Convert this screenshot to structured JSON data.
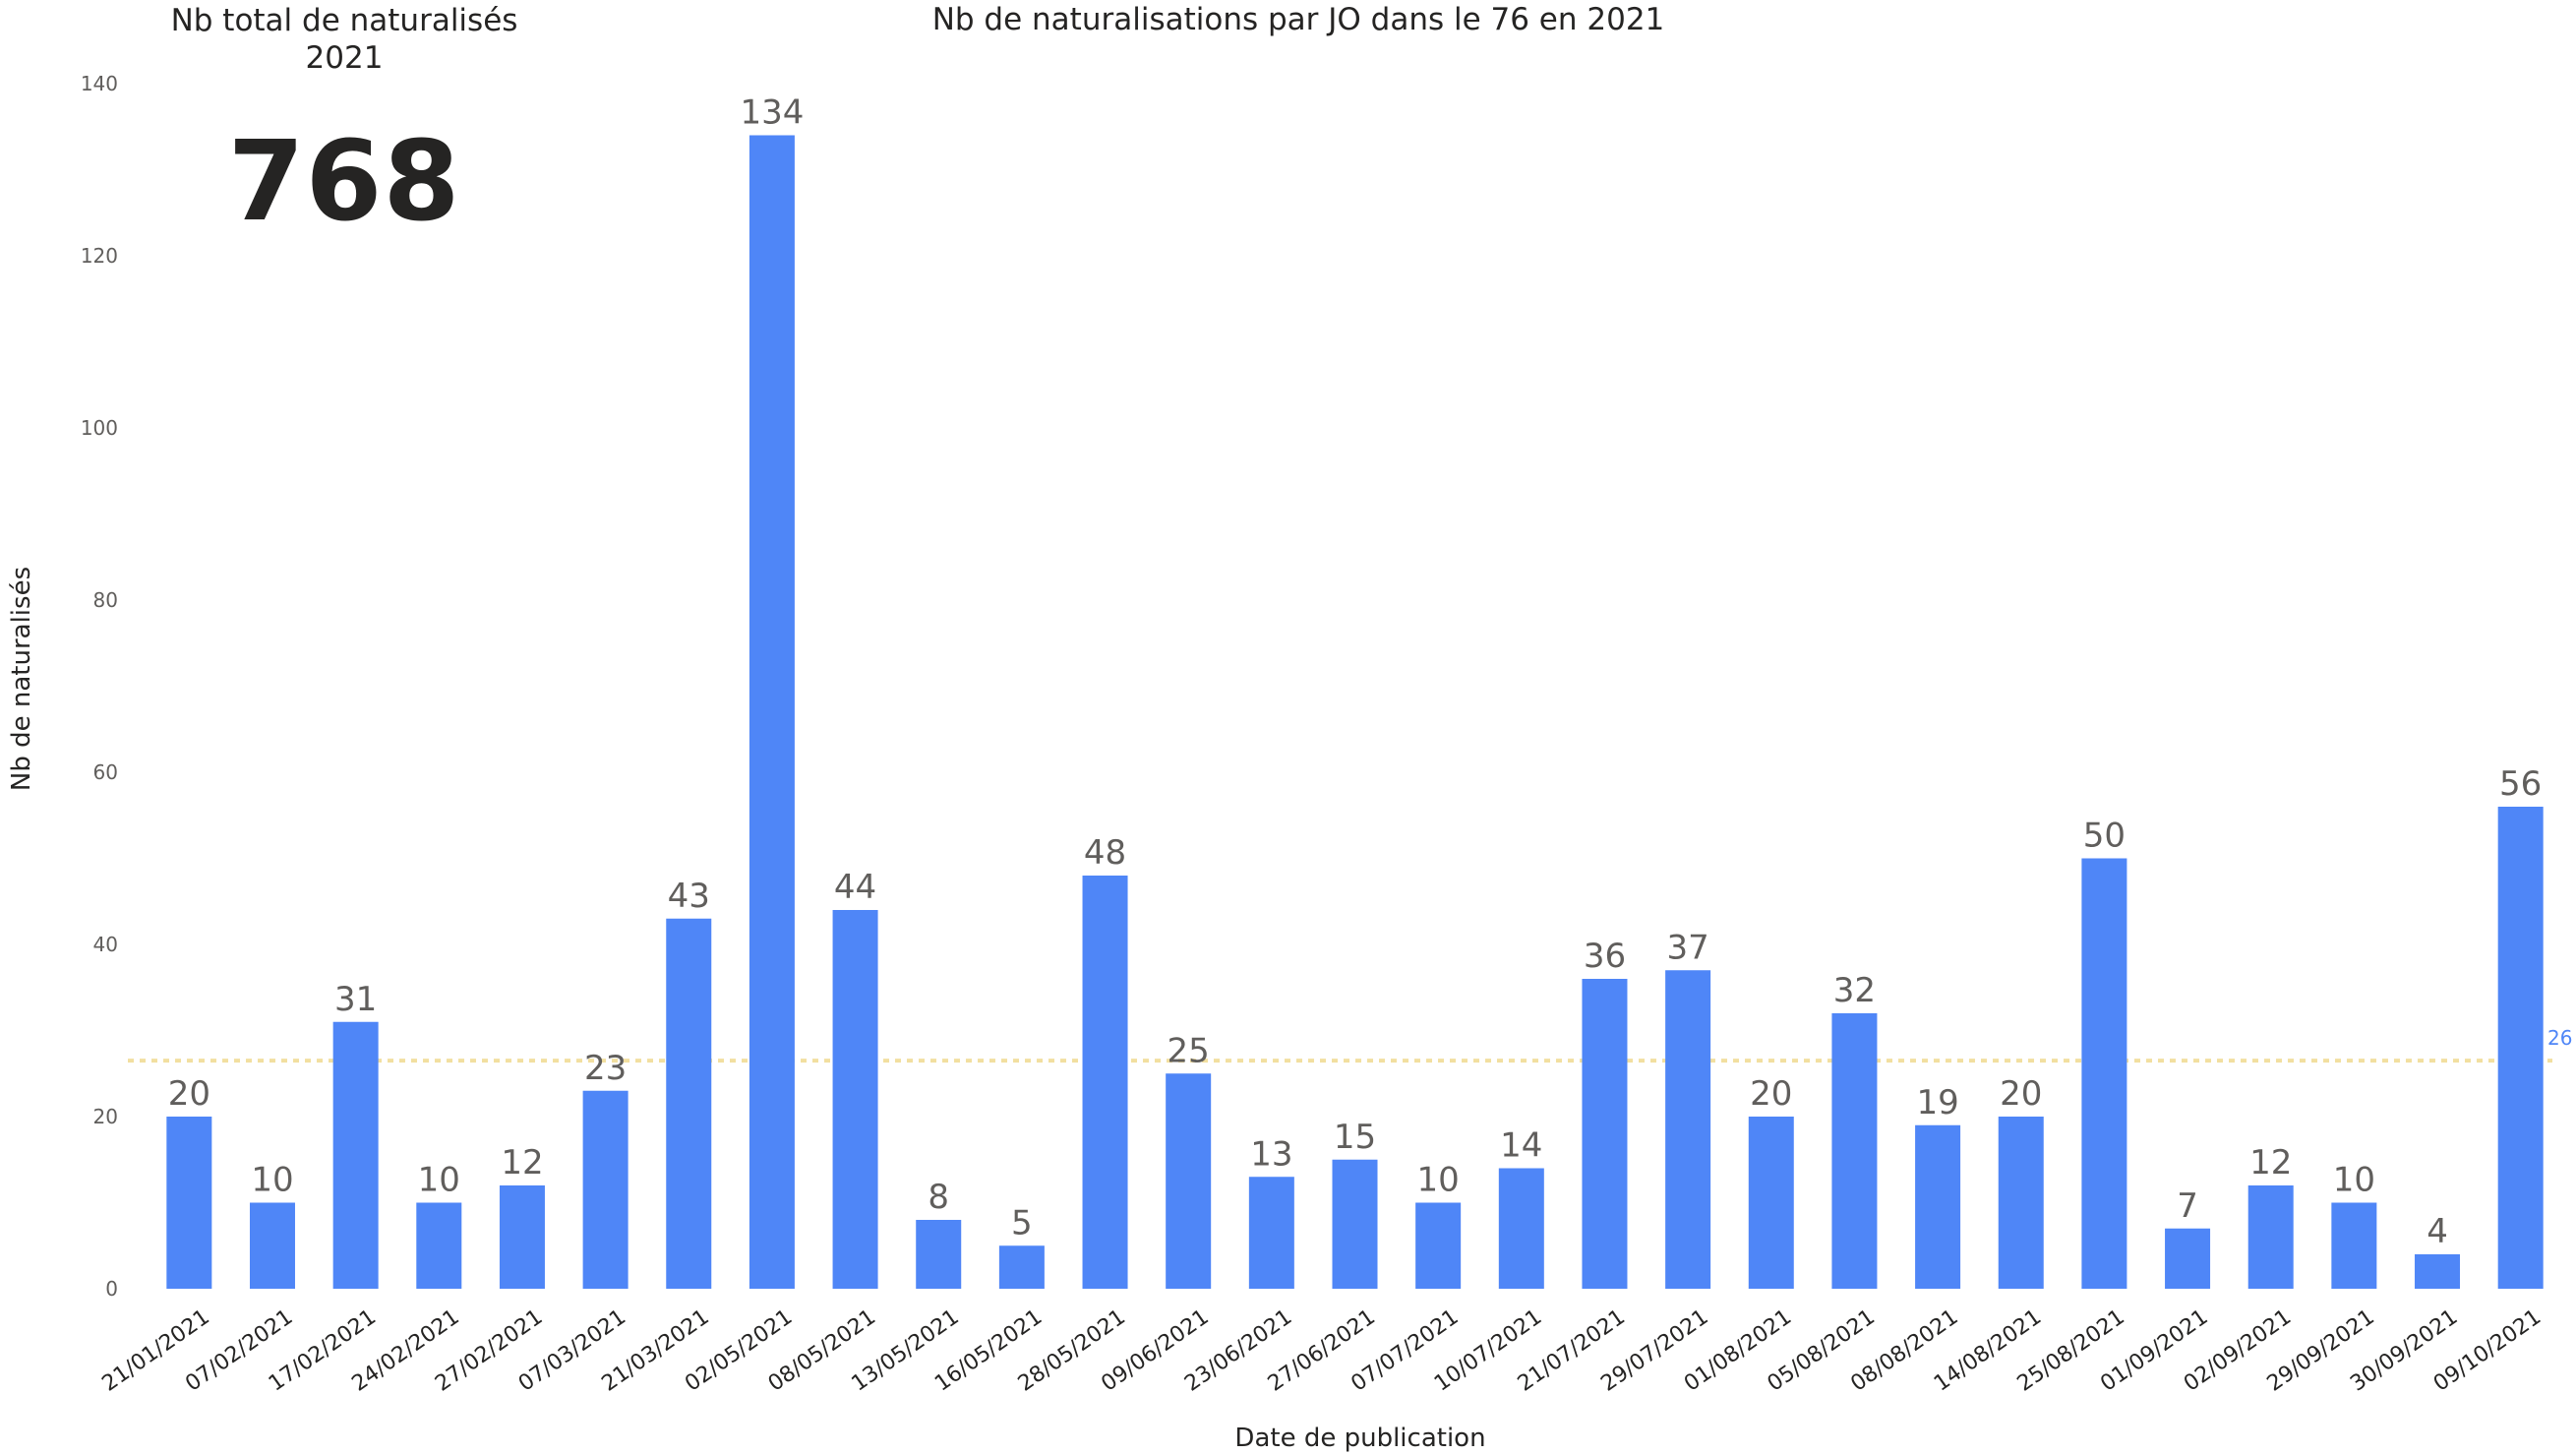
{
  "kpi": {
    "title_line1": "Nb total de naturalisés",
    "title_line2": "2021",
    "value": "768"
  },
  "colors": {
    "bar": "#4f86f7",
    "average_line": "#f2dfa0",
    "average_label": "#4f86f7"
  },
  "chart_data": {
    "type": "bar",
    "title": "Nb de naturalisations par JO dans le 76 en 2021",
    "xlabel": "Date de publication",
    "ylabel": "Nb de naturalisés",
    "ylim": [
      0,
      140
    ],
    "yticks": [
      0,
      20,
      40,
      60,
      80,
      100,
      120,
      140
    ],
    "categories": [
      "21/01/2021",
      "07/02/2021",
      "17/02/2021",
      "24/02/2021",
      "27/02/2021",
      "07/03/2021",
      "21/03/2021",
      "02/05/2021",
      "08/05/2021",
      "13/05/2021",
      "16/05/2021",
      "28/05/2021",
      "09/06/2021",
      "23/06/2021",
      "27/06/2021",
      "07/07/2021",
      "10/07/2021",
      "21/07/2021",
      "29/07/2021",
      "01/08/2021",
      "05/08/2021",
      "08/08/2021",
      "14/08/2021",
      "25/08/2021",
      "01/09/2021",
      "02/09/2021",
      "29/09/2021",
      "30/09/2021",
      "09/10/2021"
    ],
    "values": [
      20,
      10,
      31,
      10,
      12,
      23,
      43,
      134,
      44,
      8,
      5,
      48,
      25,
      13,
      15,
      10,
      14,
      36,
      37,
      20,
      32,
      19,
      20,
      50,
      7,
      12,
      10,
      4,
      56
    ],
    "average_line": {
      "value": 26.5,
      "label": "26"
    },
    "grid": false,
    "legend": "none"
  }
}
